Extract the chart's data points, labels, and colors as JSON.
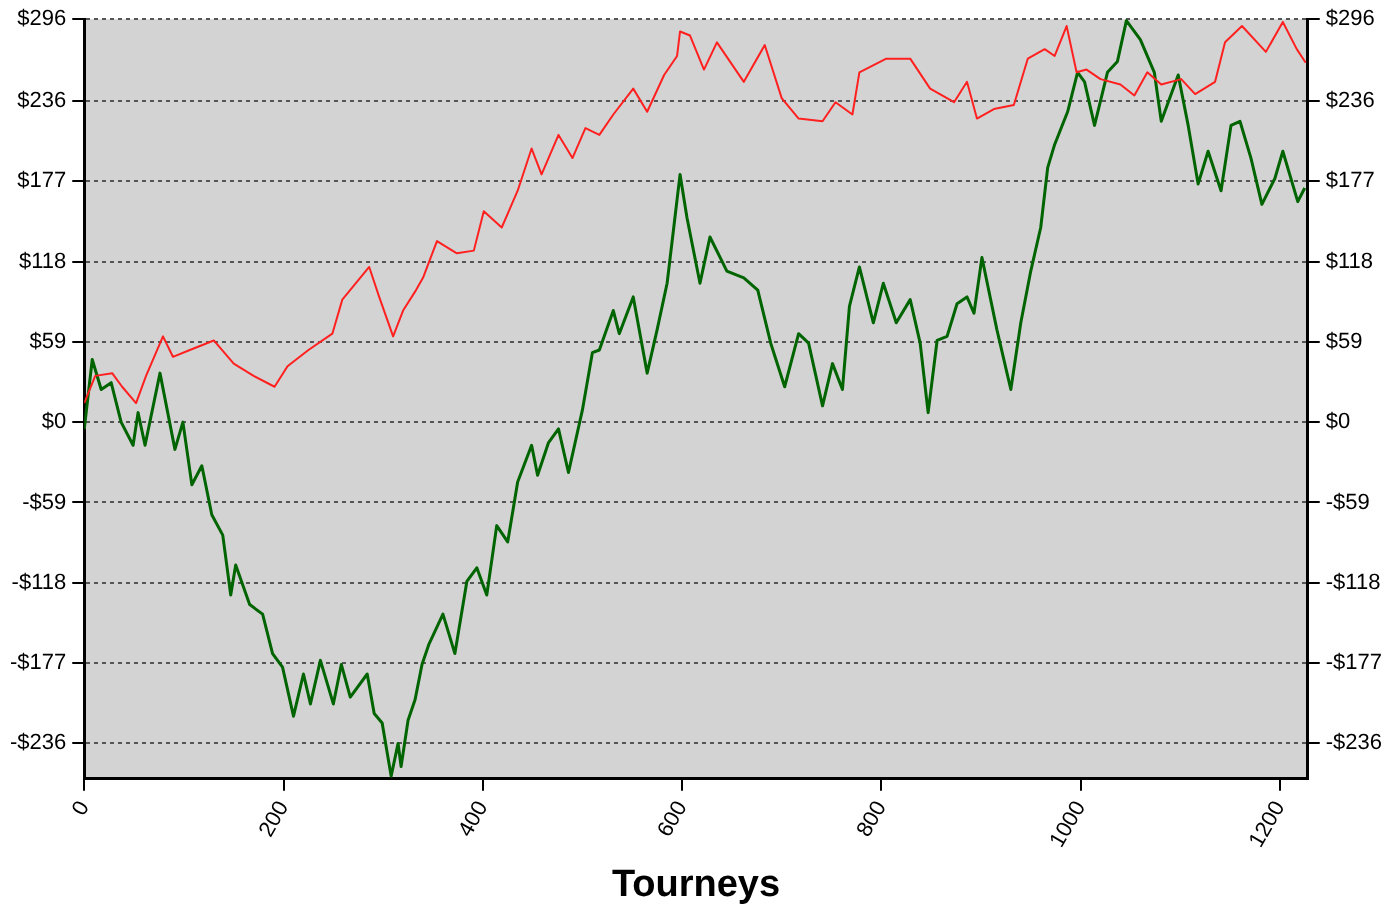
{
  "chart_data": {
    "type": "line",
    "xlabel": "Tourneys",
    "marker": "none",
    "grid": "y",
    "xlim": [
      0,
      1228
    ],
    "xticks": [
      0,
      200,
      400,
      600,
      800,
      1000,
      1200
    ],
    "ylim": [
      -262,
      296
    ],
    "yticks": [
      {
        "value": -236,
        "label": "-$236"
      },
      {
        "value": -177,
        "label": "-$177"
      },
      {
        "value": -118,
        "label": "-$118"
      },
      {
        "value": -59,
        "label": "-$59"
      },
      {
        "value": 0,
        "label": "$0"
      },
      {
        "value": 59,
        "label": "$59"
      },
      {
        "value": 118,
        "label": "$118"
      },
      {
        "value": 177,
        "label": "$177"
      },
      {
        "value": 236,
        "label": "$236"
      },
      {
        "value": 296,
        "label": "$296"
      }
    ],
    "y2lim": [
      -262,
      296
    ],
    "y2ticks": [
      {
        "value": -236,
        "label": "-$236"
      },
      {
        "value": -177,
        "label": "-$177"
      },
      {
        "value": -118,
        "label": "-$118"
      },
      {
        "value": -59,
        "label": "-$59"
      },
      {
        "value": 0,
        "label": "$0"
      },
      {
        "value": 59,
        "label": "$59"
      },
      {
        "value": 118,
        "label": "$118"
      },
      {
        "value": 177,
        "label": "$177"
      },
      {
        "value": 236,
        "label": "$236"
      },
      {
        "value": 296,
        "label": "$296"
      }
    ],
    "series": [
      {
        "color": "#ff2020",
        "x": [
          0,
          11,
          28,
          38,
          52,
          62,
          79,
          89,
          106,
          130,
          150,
          170,
          191,
          204,
          225,
          249,
          259,
          286,
          296,
          310,
          320,
          333,
          340,
          354,
          374,
          391,
          401,
          419,
          435,
          449,
          459,
          476,
          490,
          503,
          517,
          531,
          551,
          565,
          582,
          595,
          598,
          608,
          622,
          635,
          662,
          683,
          700,
          717,
          741,
          754,
          771,
          778,
          805,
          829,
          849,
          873,
          886,
          896,
          913,
          933,
          947,
          964,
          974,
          986,
          996,
          1006,
          1020,
          1040,
          1054,
          1067,
          1081,
          1101,
          1115,
          1135,
          1145,
          1162,
          1186,
          1203,
          1217,
          1226
        ],
        "values": [
          14,
          34,
          36,
          26,
          14,
          34,
          63,
          48,
          53,
          60,
          43,
          34,
          26,
          41,
          53,
          65,
          90,
          114,
          92,
          63,
          82,
          97,
          106,
          133,
          124,
          126,
          155,
          143,
          170,
          201,
          182,
          211,
          194,
          216,
          211,
          226,
          245,
          228,
          255,
          269,
          287,
          284,
          259,
          279,
          250,
          277,
          238,
          223,
          221,
          235,
          226,
          257,
          267,
          267,
          245,
          235,
          250,
          223,
          230,
          233,
          267,
          274,
          269,
          291,
          257,
          259,
          252,
          248,
          240,
          257,
          248,
          252,
          241,
          250,
          279,
          291,
          272,
          294,
          274,
          264
        ]
      },
      {
        "color": "#006400",
        "x": [
          0,
          8,
          17,
          27,
          37,
          49,
          54,
          61,
          76,
          91,
          99,
          108,
          118,
          128,
          139,
          147,
          152,
          166,
          179,
          189,
          199,
          210,
          220,
          227,
          237,
          250,
          258,
          267,
          284,
          291,
          299,
          308,
          315,
          318,
          325,
          332,
          339,
          346,
          360,
          372,
          384,
          394,
          404,
          414,
          425,
          435,
          449,
          455,
          466,
          476,
          486,
          500,
          510,
          517,
          531,
          537,
          551,
          565,
          575,
          585,
          592,
          598,
          605,
          618,
          628,
          645,
          662,
          676,
          689,
          703,
          717,
          727,
          741,
          751,
          761,
          768,
          778,
          792,
          802,
          815,
          829,
          839,
          847,
          856,
          866,
          876,
          886,
          893,
          901,
          916,
          930,
          940,
          950,
          960,
          967,
          974,
          987,
          997,
          1004,
          1014,
          1027,
          1037,
          1046,
          1060,
          1074,
          1081,
          1098,
          1108,
          1118,
          1128,
          1141,
          1151,
          1160,
          1171,
          1182,
          1195,
          1203,
          1218,
          1225
        ],
        "values": [
          -5,
          46,
          24,
          29,
          0,
          -17,
          7,
          -17,
          36,
          -20,
          0,
          -46,
          -32,
          -68,
          -83,
          -127,
          -105,
          -134,
          -141,
          -170,
          -180,
          -216,
          -185,
          -207,
          -175,
          -207,
          -178,
          -202,
          -185,
          -214,
          -221,
          -260,
          -236,
          -253,
          -219,
          -204,
          -178,
          -163,
          -141,
          -170,
          -117,
          -107,
          -127,
          -76,
          -88,
          -44,
          -17,
          -39,
          -15,
          -5,
          -37,
          9,
          51,
          53,
          82,
          65,
          92,
          36,
          68,
          102,
          145,
          182,
          150,
          102,
          136,
          111,
          106,
          97,
          58,
          26,
          65,
          58,
          12,
          43,
          24,
          85,
          114,
          73,
          102,
          73,
          90,
          58,
          7,
          60,
          63,
          87,
          92,
          80,
          121,
          68,
          24,
          73,
          111,
          143,
          187,
          204,
          228,
          257,
          250,
          218,
          257,
          265,
          295,
          281,
          257,
          221,
          255,
          218,
          175,
          199,
          170,
          218,
          221,
          194,
          160,
          179,
          199,
          162,
          172
        ]
      }
    ]
  }
}
